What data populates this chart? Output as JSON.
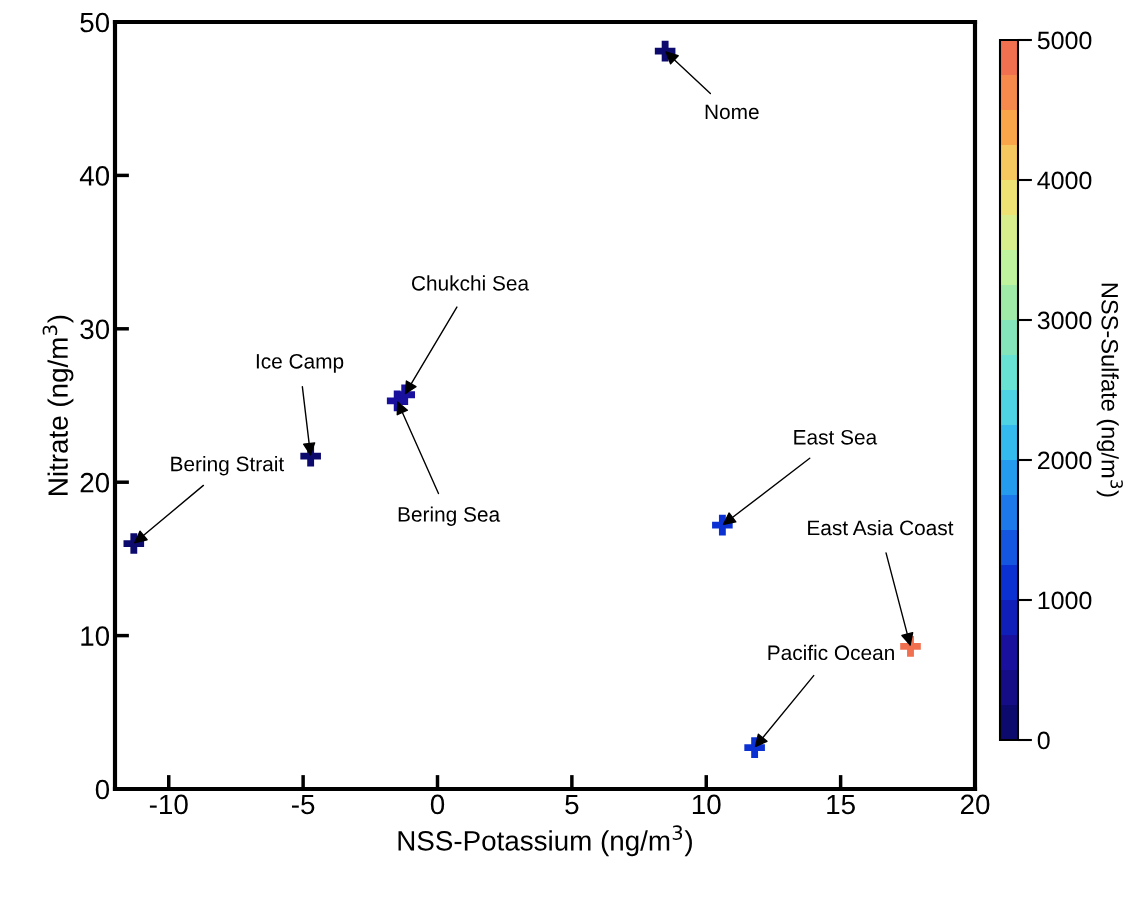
{
  "chart_data": {
    "type": "scatter",
    "xlabel": "NSS-Potassium (ng/m$^{3}$)",
    "ylabel": "Nitrate (ng/m$^{3}$)",
    "clabel": "NSS-Sulfate (ng/m$^{3}$)",
    "x": [
      8.47,
      -1.22,
      -1.5,
      -4.72,
      -11.3,
      10.6,
      17.6,
      11.8
    ],
    "values": [
      48.1,
      25.7,
      25.3,
      21.7,
      16.0,
      17.2,
      9.3,
      2.7
    ],
    "cvalues": [
      150,
      700,
      600,
      150,
      100,
      1100,
      4900,
      1200
    ],
    "clim": [
      0,
      5000
    ],
    "cticks": [
      0,
      1000,
      2000,
      3000,
      4000,
      5000
    ],
    "annotations": [
      {
        "text": "Nome",
        "x": 8.47,
        "y": 48.1
      },
      {
        "text": "Chukchi Sea",
        "x": -1.22,
        "y": 25.7
      },
      {
        "text": "Bering Sea",
        "x": -1.5,
        "y": 25.3
      },
      {
        "text": "Ice Camp",
        "x": -4.72,
        "y": 21.7
      },
      {
        "text": "Bering Strait",
        "x": -11.3,
        "y": 16.0
      },
      {
        "text": "East Sea",
        "x": 10.6,
        "y": 17.2
      },
      {
        "text": "East Asia Coast",
        "x": 17.6,
        "y": 9.3
      },
      {
        "text": "Pacific Ocean",
        "x": 11.8,
        "y": 2.7
      }
    ],
    "xlim": [
      -12,
      20
    ],
    "ylim": [
      0,
      50
    ],
    "xticks": [
      -10,
      -5,
      0,
      5,
      10,
      15,
      20
    ],
    "yticks": [
      0,
      10,
      20,
      30,
      40,
      50
    ],
    "marker": "cross",
    "grid": false
  }
}
